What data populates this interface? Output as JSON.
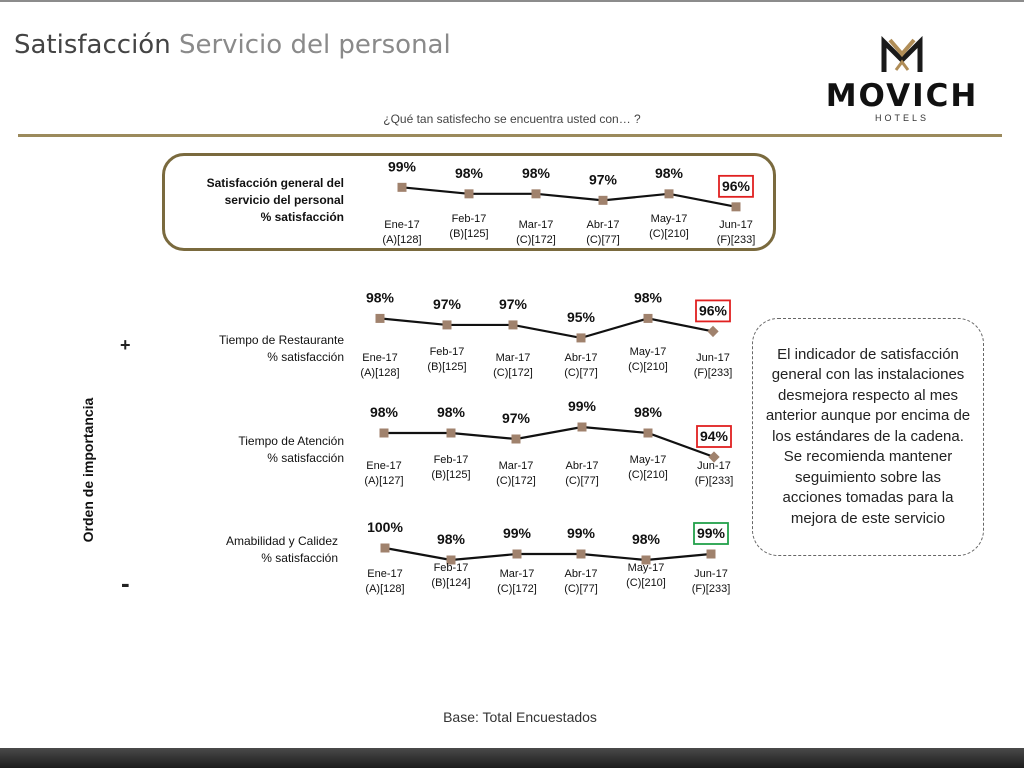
{
  "header": {
    "title_main": "Satisfacción",
    "title_sub": "Servicio del personal",
    "question": "¿Qué tan satisfecho se encuentra usted con… ?"
  },
  "logo": {
    "name": "MOVICH",
    "sub": "HOTELS"
  },
  "axis": {
    "label": "Orden de importancia",
    "plus": "+",
    "minus": "-"
  },
  "note": "El indicador de satisfacción general con las instalaciones desmejora respecto al mes anterior aunque por encima de los estándares de la cadena. Se recomienda mantener seguimiento sobre las acciones tomadas para la mejora de este servicio",
  "footer": {
    "base": "Base: Total Encuestados"
  },
  "colors": {
    "marker": "#a0826d",
    "line": "#111111",
    "highlight_red": "#e02020",
    "highlight_green": "#22a04a",
    "frame_gold": "#7a6a3e"
  },
  "chart_data": [
    {
      "type": "line",
      "label_lines": [
        "Satisfacción general del",
        "servicio del personal",
        "% satisfacción"
      ],
      "categories": [
        "Ene-17",
        "Feb-17",
        "Mar-17",
        "Abr-17",
        "May-17",
        "Jun-17"
      ],
      "category_bases": [
        "(A)[128]",
        "(B)[125]",
        "(C)[172]",
        "(C)[77]",
        "(C)[210]",
        "(F)[233]"
      ],
      "values": [
        99,
        98,
        98,
        97,
        98,
        96
      ],
      "value_labels": [
        "99%",
        "98%",
        "98%",
        "97%",
        "98%",
        "96%"
      ],
      "highlight": {
        "index": 5,
        "color": "red"
      }
    },
    {
      "type": "line",
      "label_lines": [
        "Tiempo de Restaurante",
        "% satisfacción"
      ],
      "categories": [
        "Ene-17",
        "Feb-17",
        "Mar-17",
        "Abr-17",
        "May-17",
        "Jun-17"
      ],
      "category_bases": [
        "(A)[128]",
        "(B)[125]",
        "(C)[172]",
        "(C)[77]",
        "(C)[210]",
        "(F)[233]"
      ],
      "values": [
        98,
        97,
        97,
        95,
        98,
        96
      ],
      "value_labels": [
        "98%",
        "97%",
        "97%",
        "95%",
        "98%",
        "96%"
      ],
      "highlight": {
        "index": 5,
        "color": "red"
      }
    },
    {
      "type": "line",
      "label_lines": [
        "Tiempo de Atención",
        "% satisfacción"
      ],
      "categories": [
        "Ene-17",
        "Feb-17",
        "Mar-17",
        "Abr-17",
        "May-17",
        "Jun-17"
      ],
      "category_bases": [
        "(A)[127]",
        "(B)[125]",
        "(C)[172]",
        "(C)[77]",
        "(C)[210]",
        "(F)[233]"
      ],
      "values": [
        98,
        98,
        97,
        99,
        98,
        94
      ],
      "value_labels": [
        "98%",
        "98%",
        "97%",
        "99%",
        "98%",
        "94%"
      ],
      "highlight": {
        "index": 5,
        "color": "red"
      }
    },
    {
      "type": "line",
      "label_lines": [
        "Amabilidad y Calidez",
        "% satisfacción"
      ],
      "categories": [
        "Ene-17",
        "Feb-17",
        "Mar-17",
        "Abr-17",
        "May-17",
        "Jun-17"
      ],
      "category_bases": [
        "(A)[128]",
        "(B)[124]",
        "(C)[172]",
        "(C)[77]",
        "(C)[210]",
        "(F)[233]"
      ],
      "values": [
        100,
        98,
        99,
        99,
        98,
        99
      ],
      "value_labels": [
        "100%",
        "98%",
        "99%",
        "99%",
        "98%",
        "99%"
      ],
      "highlight": {
        "index": 5,
        "color": "green"
      }
    }
  ]
}
